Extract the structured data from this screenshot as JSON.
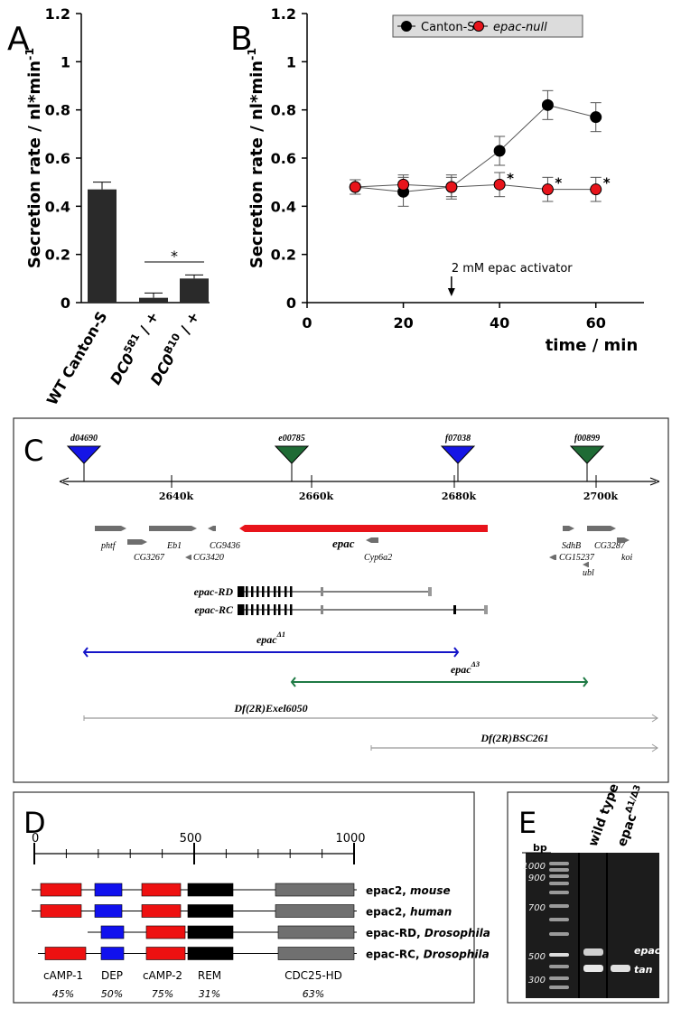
{
  "chart_data": [
    {
      "type": "bar",
      "panel_label": "A",
      "y_label": "Secretion rate  / nl*min",
      "y_label_superscript": "-1",
      "categories": [
        "WT Canton-S",
        "DC0",
        "DC0"
      ],
      "category_superscripts": [
        null,
        "581",
        "B10"
      ],
      "category_suffixes": [
        null,
        " / +",
        " / +"
      ],
      "values": [
        0.47,
        0.02,
        0.1
      ],
      "errors": [
        0.03,
        0.02,
        0.015
      ],
      "color": "#2a2a2a",
      "ylim": [
        0,
        1.2
      ],
      "yticks": [
        0,
        0.2,
        0.4,
        0.6,
        0.8,
        1,
        1.2
      ],
      "annotation": "*"
    },
    {
      "type": "line",
      "panel_label": "B",
      "y_label": "Secretion rate / nl*min",
      "y_label_superscript": "-1",
      "x_label": "time / min",
      "x": [
        10,
        20,
        30,
        40,
        50,
        60
      ],
      "xlim": [
        0,
        70
      ],
      "xticks": [
        0,
        20,
        40,
        60
      ],
      "ylim": [
        0,
        1.2
      ],
      "yticks": [
        0,
        0.2,
        0.4,
        0.6,
        0.8,
        1,
        1.2
      ],
      "series": [
        {
          "name": "Canton-S",
          "color": "#000000",
          "values": [
            0.48,
            0.46,
            0.48,
            0.63,
            0.82,
            0.77
          ],
          "errors": [
            0.03,
            0.06,
            0.04,
            0.06,
            0.06,
            0.06
          ]
        },
        {
          "name": "epac-null",
          "color": "#e8141b",
          "values": [
            0.48,
            0.49,
            0.48,
            0.49,
            0.47,
            0.47
          ],
          "errors": [
            0.03,
            0.04,
            0.05,
            0.05,
            0.05,
            0.05
          ],
          "significance": [
            null,
            null,
            null,
            "*",
            "*",
            "*"
          ]
        }
      ],
      "legend": "top",
      "annotation": "2 mM epac activator",
      "annotation_x": 30
    }
  ],
  "panel_c": {
    "label": "C",
    "insertions": [
      {
        "name": "d04690",
        "color": "#1515e6"
      },
      {
        "name": "e00785",
        "color": "#1f6b35"
      },
      {
        "name": "f07038",
        "color": "#1515e6"
      },
      {
        "name": "f00899",
        "color": "#1f6b35"
      }
    ],
    "scale_ticks": [
      "2640k",
      "2660k",
      "2680k",
      "2700k"
    ],
    "genes": [
      "phtf",
      "CG3267",
      "Eb1",
      "CG3420",
      "CG9436",
      "epac",
      "Cyp6a2",
      "SdhB",
      "CG15237",
      "ubl",
      "CG3287",
      "koi"
    ],
    "epac_color": "#e8141b",
    "transcripts": [
      "epac-RD",
      "epac-RC"
    ],
    "deletions": [
      {
        "name": "epac",
        "superscript": "Δ1",
        "color": "#1515c8"
      },
      {
        "name": "epac",
        "superscript": "Δ3",
        "color": "#1f7a45"
      },
      {
        "name": "Df(2R)Exel6050",
        "color": "#999999"
      },
      {
        "name": "Df(2R)BSC261",
        "color": "#999999"
      }
    ]
  },
  "panel_d": {
    "label": "D",
    "scale_ticks": [
      0,
      500,
      1000
    ],
    "proteins": [
      {
        "name": "epac2, ",
        "species": "mouse"
      },
      {
        "name": "epac2, ",
        "species": "human"
      },
      {
        "name": "epac-RD, ",
        "species": "Drosophila"
      },
      {
        "name": "epac-RC, ",
        "species": "Drosophila"
      }
    ],
    "domains": [
      {
        "name": "cAMP-1",
        "identity": "45%",
        "color": "#ee1111"
      },
      {
        "name": "DEP",
        "identity": "50%",
        "color": "#1111ee"
      },
      {
        "name": "cAMP-2",
        "identity": "75%",
        "color": "#ee1111"
      },
      {
        "name": "REM",
        "identity": "31%",
        "color": "#000000"
      },
      {
        "name": "CDC25-HD",
        "identity": "63%",
        "color": "#707070"
      }
    ]
  },
  "panel_e": {
    "label": "E",
    "unit": "bp",
    "ladder": [
      "1000",
      "900",
      "700",
      "500",
      "300"
    ],
    "lanes": [
      {
        "name": "wild type"
      },
      {
        "name": "epac",
        "superscript": "Δ1/Δ3"
      }
    ],
    "bands": [
      "epac",
      "tan"
    ]
  }
}
